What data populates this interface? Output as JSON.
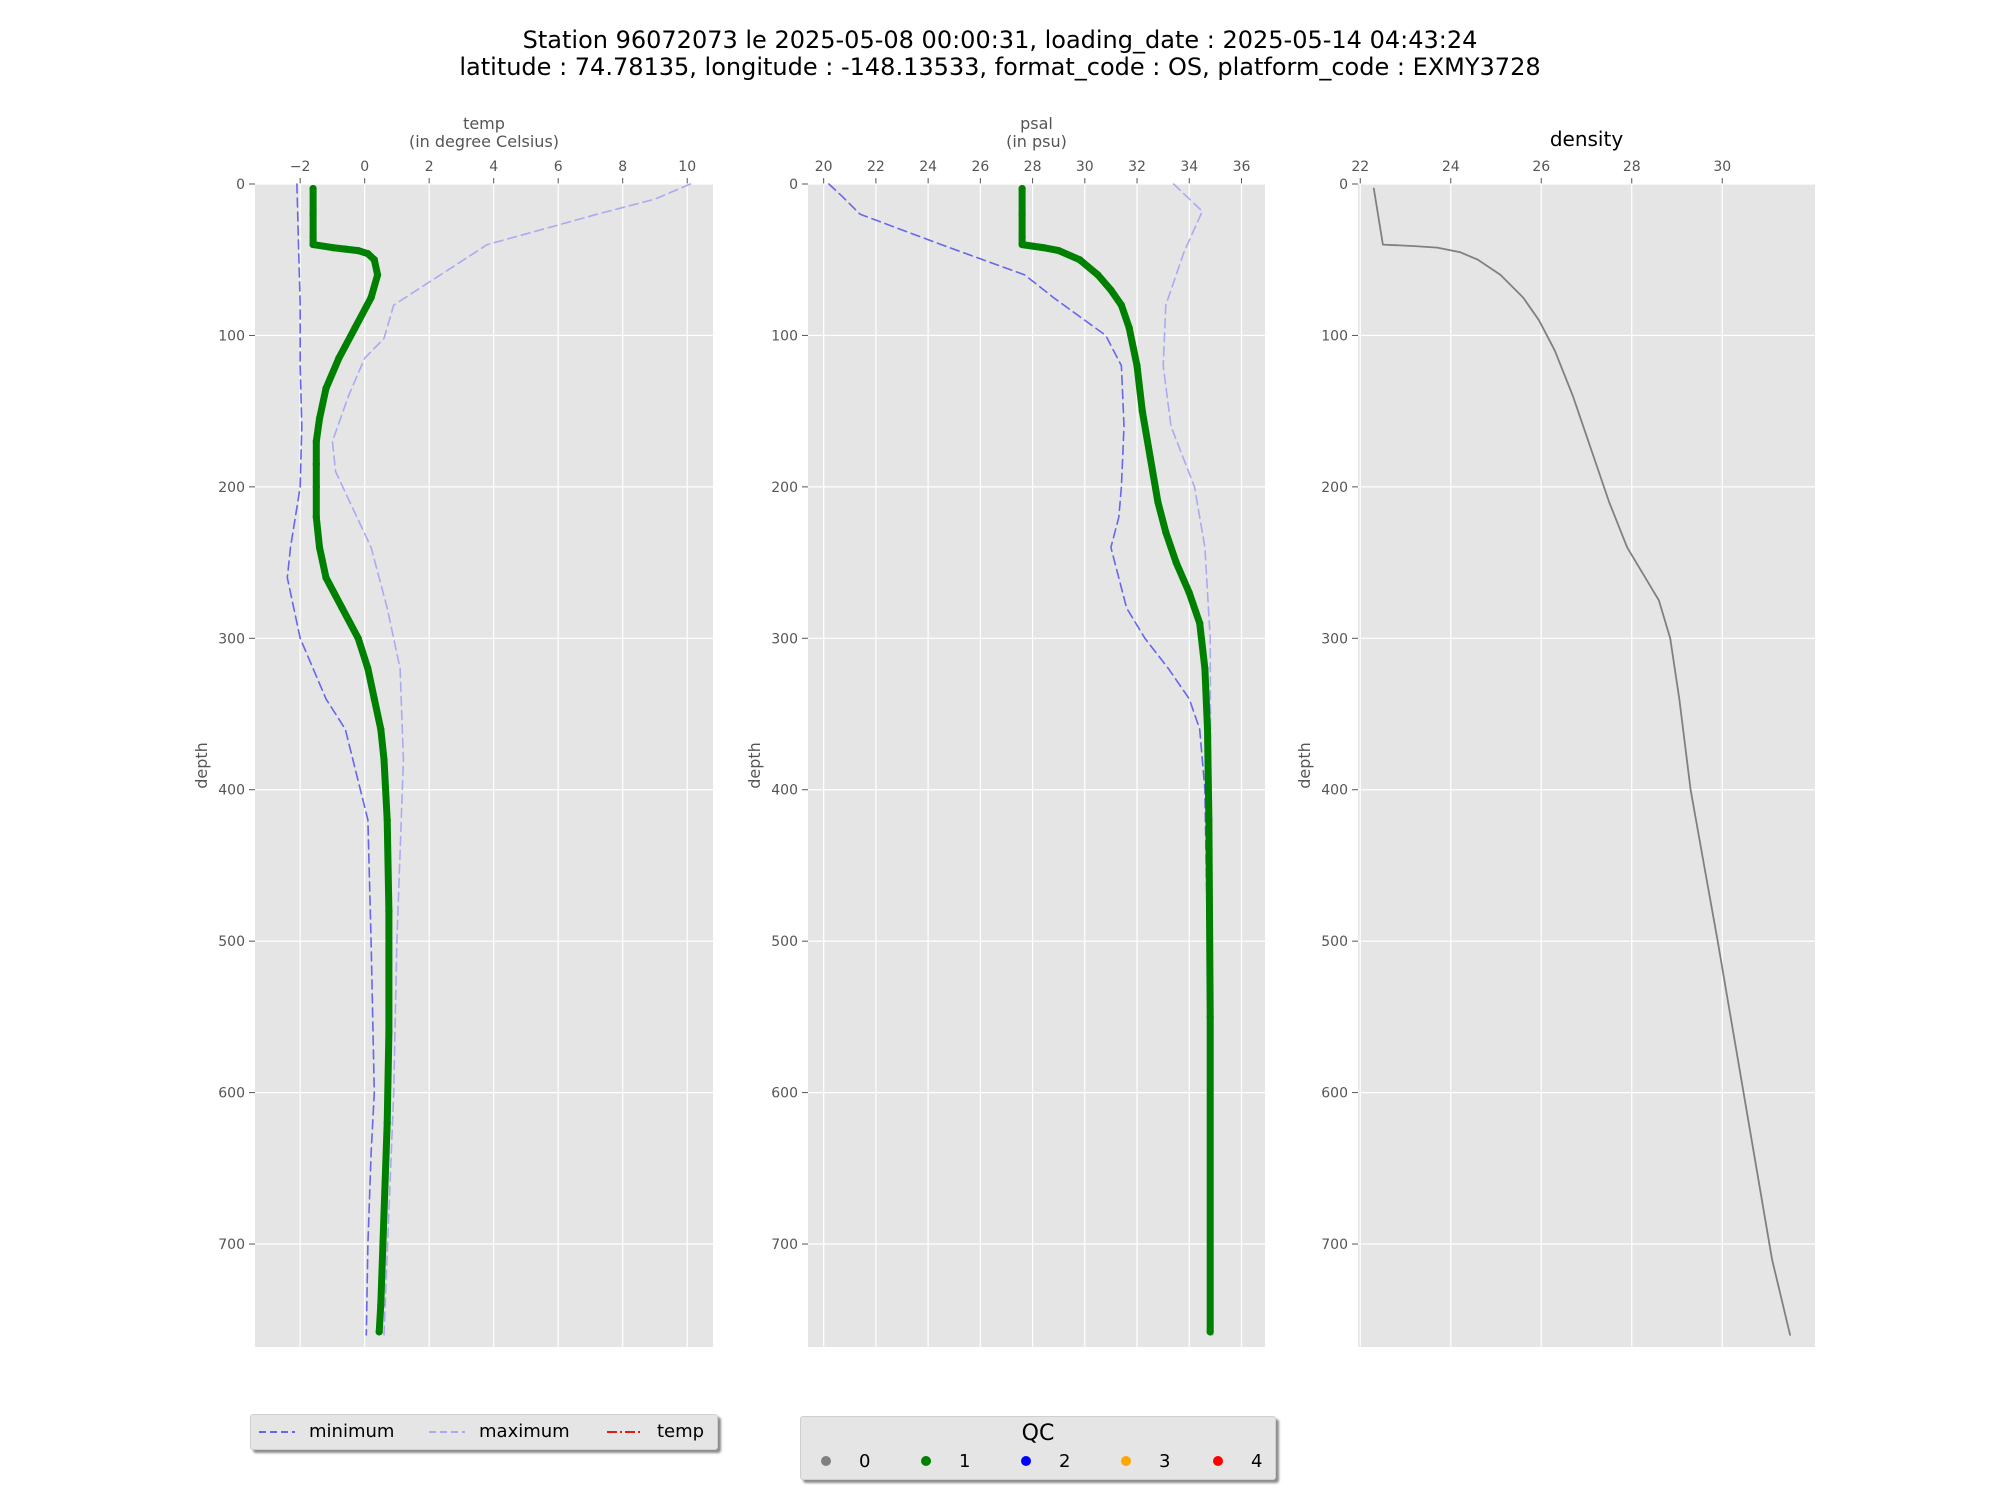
{
  "title": {
    "line1": "Station 96072073 le 2025-05-08 00:00:31, loading_date : 2025-05-14 04:43:24",
    "line2": "latitude : 74.78135, longitude : -148.13533, format_code : OS, platform_code : EXMY3728"
  },
  "colors": {
    "panel_bg": "#e5e5e5",
    "grid": "#ffffff",
    "qc1_profile": "#008000",
    "minimum": "#6666ee",
    "maximum": "#aaaaf2",
    "density": "#808080"
  },
  "chart_data": [
    {
      "type": "line",
      "id": "temp",
      "title": "temp",
      "subtitle": "(in degree Celsius)",
      "ylabel": "depth",
      "xlim": [
        -3.4,
        10.8
      ],
      "ylim": [
        0,
        768
      ],
      "y_inverted": true,
      "x_axis_position": "top",
      "xticks": [
        -2,
        0,
        2,
        4,
        6,
        8,
        10
      ],
      "xtick_labels": [
        "−2",
        "0",
        "2",
        "4",
        "6",
        "8",
        "10"
      ],
      "yticks": [
        0,
        100,
        200,
        300,
        400,
        500,
        600,
        700
      ],
      "grid": true,
      "series": [
        {
          "name": "minimum",
          "style": "dashed",
          "color": "#6666ee",
          "x": [
            -2.1,
            -2.05,
            -2.0,
            -2.0,
            -1.95,
            -2.0,
            -2.3,
            -2.4,
            -2.0,
            -1.2,
            -0.6,
            0.1,
            0.2,
            0.3,
            0.2,
            0.1,
            0.05
          ],
          "y": [
            0,
            40,
            80,
            120,
            160,
            200,
            240,
            260,
            300,
            340,
            360,
            420,
            500,
            600,
            640,
            700,
            760
          ]
        },
        {
          "name": "maximum",
          "style": "dashed",
          "color": "#aaaaf2",
          "x": [
            10.1,
            9.0,
            7.2,
            3.8,
            0.9,
            0.6,
            0.0,
            -0.5,
            -1.0,
            -0.9,
            0.2,
            0.7,
            1.1,
            1.2,
            1.0,
            0.9,
            0.6
          ],
          "y": [
            0,
            10,
            20,
            40,
            80,
            102,
            115,
            140,
            170,
            190,
            240,
            280,
            320,
            380,
            500,
            600,
            760
          ]
        },
        {
          "qc": 1,
          "color": "#008000",
          "x": [
            -1.6,
            -1.6,
            -1.6,
            -1.6,
            -1.0,
            -0.6,
            -0.2,
            0.1,
            0.3,
            0.4,
            0.2,
            -0.3,
            -0.8,
            -1.2,
            -1.4,
            -1.5,
            -1.5,
            -1.5,
            -1.5,
            -1.4,
            -1.2,
            -0.7,
            -0.2,
            0.1,
            0.3,
            0.5,
            0.6,
            0.7,
            0.75,
            0.75,
            0.7,
            0.6,
            0.5,
            0.45
          ],
          "y": [
            3,
            20,
            35,
            40,
            42,
            43,
            44,
            46,
            50,
            60,
            75,
            95,
            115,
            135,
            155,
            170,
            185,
            200,
            220,
            240,
            260,
            280,
            300,
            320,
            340,
            360,
            380,
            420,
            480,
            560,
            620,
            680,
            740,
            758
          ]
        }
      ]
    },
    {
      "type": "line",
      "id": "psal",
      "title": "psal",
      "subtitle": "(in psu)",
      "ylabel": "depth",
      "xlim": [
        19.4,
        36.9
      ],
      "ylim": [
        0,
        768
      ],
      "y_inverted": true,
      "x_axis_position": "top",
      "xticks": [
        20,
        22,
        24,
        26,
        28,
        30,
        32,
        34,
        36
      ],
      "xtick_labels": [
        "20",
        "22",
        "24",
        "26",
        "28",
        "30",
        "32",
        "34",
        "36"
      ],
      "yticks": [
        0,
        100,
        200,
        300,
        400,
        500,
        600,
        700
      ],
      "grid": true,
      "series": [
        {
          "name": "minimum",
          "style": "dashed",
          "color": "#6666ee",
          "x": [
            20.2,
            20.7,
            21.4,
            24.5,
            27.7,
            28.8,
            30.8,
            31.4,
            31.5,
            31.4,
            31.3,
            31.0,
            31.6,
            32.3,
            33.2,
            34.0,
            34.4,
            34.6,
            34.7,
            34.8
          ],
          "y": [
            0,
            8,
            20,
            40,
            60,
            75,
            100,
            120,
            160,
            200,
            220,
            240,
            280,
            300,
            320,
            340,
            360,
            400,
            500,
            760
          ]
        },
        {
          "name": "maximum",
          "style": "dashed",
          "color": "#aaaaf2",
          "x": [
            33.4,
            34.5,
            33.8,
            33.1,
            33.0,
            33.3,
            34.2,
            34.6,
            34.8,
            34.9
          ],
          "y": [
            0,
            18,
            45,
            80,
            120,
            160,
            200,
            240,
            300,
            760
          ]
        },
        {
          "qc": 1,
          "color": "#008000",
          "x": [
            27.6,
            27.6,
            27.6,
            27.6,
            28.4,
            29.0,
            29.8,
            30.5,
            31.0,
            31.4,
            31.7,
            32.0,
            32.2,
            32.5,
            32.8,
            33.1,
            33.5,
            34.0,
            34.4,
            34.6,
            34.7,
            34.75,
            34.8,
            34.8
          ],
          "y": [
            3,
            20,
            35,
            40,
            42,
            44,
            50,
            60,
            70,
            80,
            95,
            120,
            150,
            180,
            210,
            230,
            250,
            270,
            290,
            320,
            360,
            420,
            550,
            758
          ]
        }
      ]
    },
    {
      "type": "line",
      "id": "density",
      "title": "density",
      "subtitle": "",
      "ylabel": "depth",
      "xlim": [
        21.95,
        32.05
      ],
      "ylim": [
        0,
        768
      ],
      "y_inverted": true,
      "x_axis_position": "top",
      "xticks": [
        22,
        24,
        26,
        28,
        30
      ],
      "xtick_labels": [
        "22",
        "24",
        "26",
        "28",
        "30"
      ],
      "yticks": [
        0,
        100,
        200,
        300,
        400,
        500,
        600,
        700
      ],
      "grid": true,
      "series": [
        {
          "color": "#808080",
          "x": [
            22.3,
            22.5,
            23.2,
            23.7,
            24.2,
            24.6,
            25.1,
            25.6,
            25.95,
            26.3,
            26.7,
            27.1,
            27.5,
            27.9,
            28.2,
            28.6,
            28.85,
            29.05,
            29.3,
            29.6,
            29.9,
            30.3,
            30.7,
            31.1,
            31.5
          ],
          "y": [
            3,
            40,
            41,
            42,
            45,
            50,
            60,
            75,
            90,
            110,
            140,
            175,
            210,
            240,
            255,
            275,
            300,
            340,
            400,
            450,
            500,
            570,
            640,
            710,
            760
          ]
        }
      ]
    }
  ],
  "legend_lines": {
    "items": [
      {
        "label": "minimum",
        "style": "dashed",
        "color": "#6666ee"
      },
      {
        "label": "maximum",
        "style": "dashed",
        "color": "#aaaaf2"
      },
      {
        "label": "temp",
        "style": "dashdot",
        "color": "#e41a1c"
      }
    ]
  },
  "legend_qc": {
    "title": "QC",
    "items": [
      {
        "label": "0",
        "color": "#808080"
      },
      {
        "label": "1",
        "color": "#008000"
      },
      {
        "label": "2",
        "color": "#0000ff"
      },
      {
        "label": "3",
        "color": "#ffa500"
      },
      {
        "label": "4",
        "color": "#ff0000"
      }
    ]
  }
}
